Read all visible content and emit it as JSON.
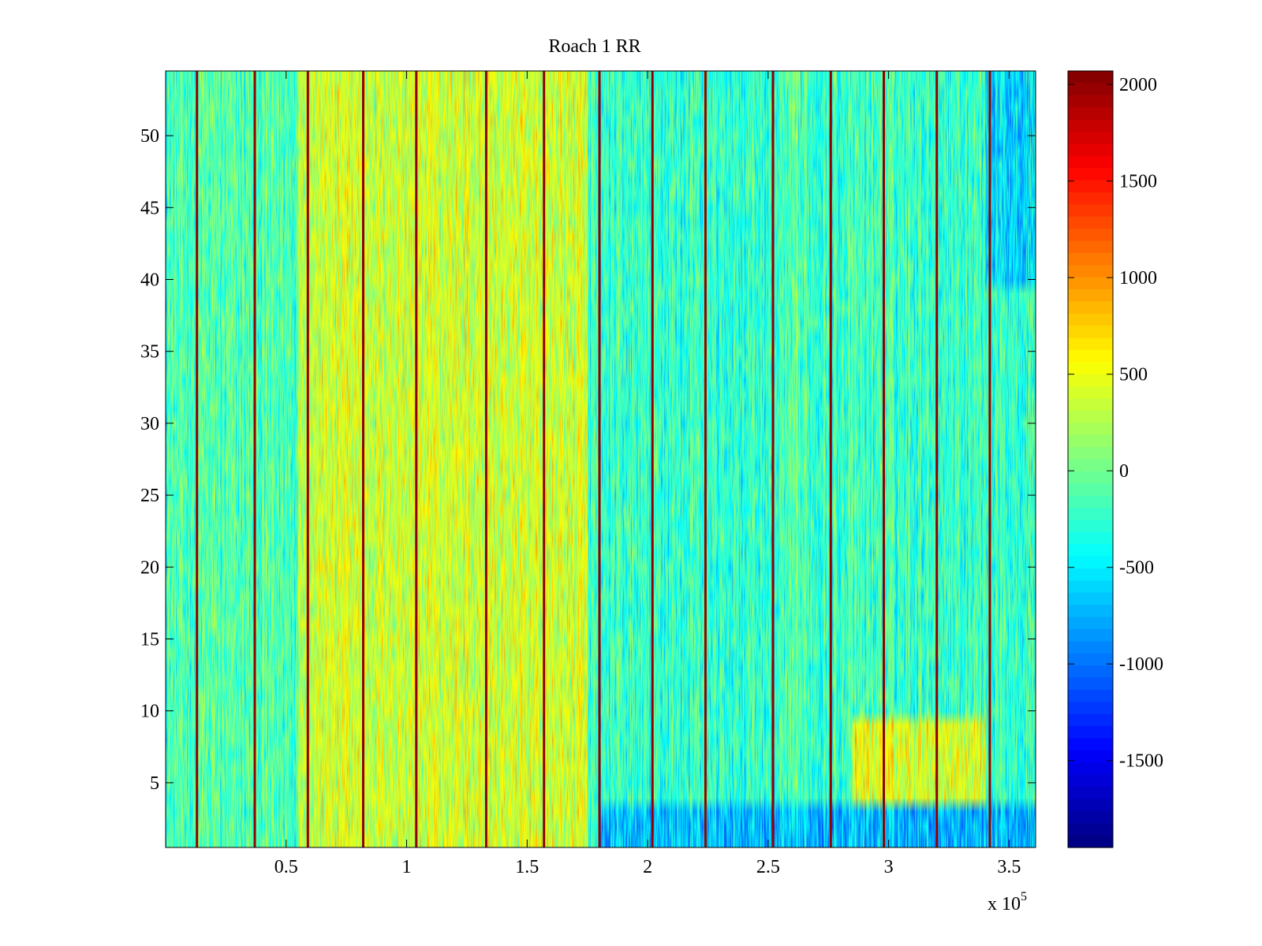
{
  "chart_data": {
    "type": "heatmap",
    "title": "Roach 1 RR",
    "xlabel": "",
    "ylabel": "",
    "x_multiplier_label": "x 10",
    "x_multiplier_exponent": "5",
    "xlim": [
      0.0,
      3.61
    ],
    "ylim": [
      0.5,
      54.5
    ],
    "x_ticks": [
      {
        "value": 0.5,
        "label": "0.5"
      },
      {
        "value": 1.0,
        "label": "1"
      },
      {
        "value": 1.5,
        "label": "1.5"
      },
      {
        "value": 2.0,
        "label": "2"
      },
      {
        "value": 2.5,
        "label": "2.5"
      },
      {
        "value": 3.0,
        "label": "3"
      },
      {
        "value": 3.5,
        "label": "3.5"
      }
    ],
    "y_ticks": [
      {
        "value": 5,
        "label": "5"
      },
      {
        "value": 10,
        "label": "10"
      },
      {
        "value": 15,
        "label": "15"
      },
      {
        "value": 20,
        "label": "20"
      },
      {
        "value": 25,
        "label": "25"
      },
      {
        "value": 30,
        "label": "30"
      },
      {
        "value": 35,
        "label": "35"
      },
      {
        "value": 40,
        "label": "40"
      },
      {
        "value": 45,
        "label": "45"
      },
      {
        "value": 50,
        "label": "50"
      }
    ],
    "rows": 54,
    "colormap": "jet",
    "clim": [
      -1950,
      2070
    ],
    "colorbar_ticks": [
      {
        "value": 2000,
        "label": "2000"
      },
      {
        "value": 1500,
        "label": "1500"
      },
      {
        "value": 1000,
        "label": "1000"
      },
      {
        "value": 500,
        "label": "500"
      },
      {
        "value": 0,
        "label": "0"
      },
      {
        "value": -500,
        "label": "-500"
      },
      {
        "value": -1000,
        "label": "-1000"
      },
      {
        "value": -1500,
        "label": "-1500"
      }
    ],
    "spike_lines_x": [
      0.13,
      0.37,
      0.59,
      0.82,
      1.04,
      1.33,
      1.57,
      1.8,
      2.02,
      2.24,
      2.52,
      2.76,
      2.98,
      3.2,
      3.42
    ],
    "spike_value": 2000,
    "regions": [
      {
        "x": [
          0.55,
          1.75
        ],
        "y": [
          0.5,
          54.5
        ],
        "mean": 380
      },
      {
        "x": [
          0.0,
          0.55
        ],
        "y": [
          0.5,
          54.5
        ],
        "mean": -150
      },
      {
        "x": [
          1.75,
          2.55
        ],
        "y": [
          0.5,
          54.5
        ],
        "mean": -250
      },
      {
        "x": [
          2.55,
          3.61
        ],
        "y": [
          0.5,
          54.5
        ],
        "mean": -200
      },
      {
        "x": [
          1.8,
          3.61
        ],
        "y": [
          0.5,
          3.5
        ],
        "mean": -700
      },
      {
        "x": [
          2.85,
          3.4
        ],
        "y": [
          3.5,
          10
        ],
        "mean": 450
      },
      {
        "x": [
          3.4,
          3.61
        ],
        "y": [
          40,
          54.5
        ],
        "mean": -550
      }
    ]
  }
}
